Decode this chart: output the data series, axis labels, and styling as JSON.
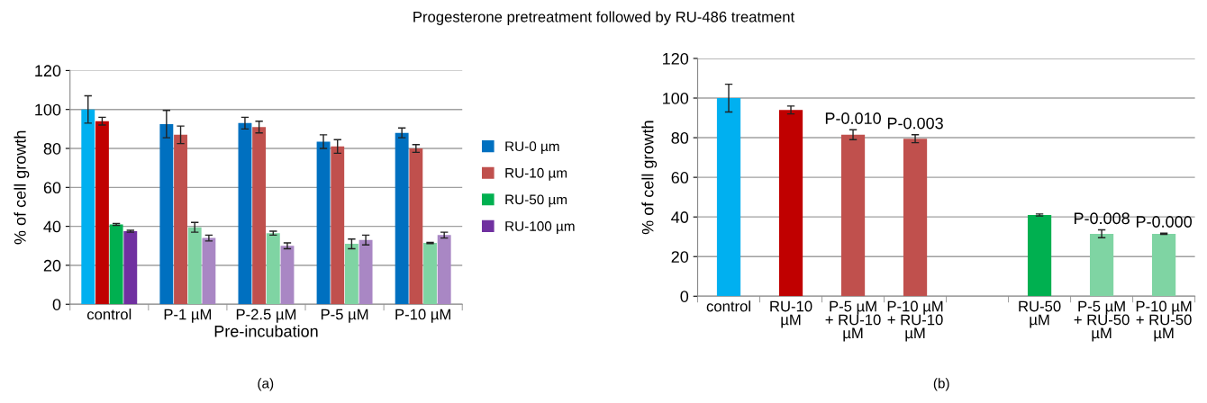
{
  "chart_data": [
    {
      "type": "bar",
      "title": "Progesterone pretreatment followed by RU-486 treatment",
      "xlabel": "Pre-incubation",
      "ylabel": "% of cell growth",
      "categories": [
        "control",
        "P-1 µM",
        "P-2.5 µM",
        "P-5 µM",
        "P-10 µM"
      ],
      "series": [
        {
          "name": "RU-0 µm",
          "color": "#0070c0",
          "colors": [
            "#00b0f0",
            "#0070c0",
            "#0070c0",
            "#0070c0",
            "#0070c0"
          ],
          "values": [
            100,
            92.5,
            93,
            83.5,
            88
          ],
          "errors": [
            7,
            7,
            3,
            3.5,
            2.5
          ]
        },
        {
          "name": "RU-10 µm",
          "color": "#c0504d",
          "colors": [
            "#c00000",
            "#c0504d",
            "#c0504d",
            "#c0504d",
            "#c0504d"
          ],
          "values": [
            94,
            87,
            91,
            81,
            80
          ],
          "errors": [
            2,
            4.5,
            3,
            3.5,
            2
          ]
        },
        {
          "name": "RU-50 µm",
          "color": "#00b050",
          "colors": [
            "#00b050",
            "#7fd4a3",
            "#7fd4a3",
            "#7fd4a3",
            "#7fd4a3"
          ],
          "values": [
            41,
            39.5,
            36.5,
            31,
            31.5
          ],
          "errors": [
            0.5,
            2.5,
            1,
            2.5,
            0.3
          ]
        },
        {
          "name": "RU-100 µm",
          "color": "#7030a0",
          "colors": [
            "#7030a0",
            "#a987c4",
            "#a987c4",
            "#a987c4",
            "#a987c4"
          ],
          "values": [
            37.5,
            34,
            30,
            33,
            35.5
          ],
          "errors": [
            0.5,
            1.5,
            1.5,
            2.5,
            1.5
          ]
        }
      ],
      "ylim": [
        0,
        120
      ],
      "yticks": [
        0,
        20,
        40,
        60,
        80,
        100,
        120
      ],
      "grid": "y",
      "legend": "right",
      "annotations": [
        "(a)"
      ]
    },
    {
      "type": "bar",
      "ylabel": "% of cell growth",
      "categories": [
        "control",
        "RU-10 µM",
        "P-5 µM + RU-10 µM",
        "P-10 µM + RU-10 µM",
        null,
        "RU-50 µM",
        "P-5 µM + RU-50 µM",
        "P-10 µM + RU-50 µM"
      ],
      "series": [
        {
          "colors": [
            "#00b0f0",
            "#c00000",
            "#c0504d",
            "#c0504d",
            "#c0504d",
            "#00b050",
            "#7fd4a3",
            "#7fd4a3"
          ],
          "values": [
            100,
            94,
            81.5,
            79.5,
            null,
            41,
            31.5,
            31.5
          ],
          "errors": [
            7,
            2,
            2.5,
            2,
            null,
            0.5,
            2,
            0.3
          ]
        }
      ],
      "ylim": [
        0,
        120
      ],
      "yticks": [
        0,
        20,
        40,
        60,
        80,
        100,
        120
      ],
      "grid": "y",
      "annotations": [
        {
          "text": "P-0.010",
          "x": "P-5 µM + RU-10 µM",
          "y": 84
        },
        {
          "text": "P-0.003",
          "x": "P-10 µM + RU-10 µM",
          "y": 81.5
        },
        {
          "text": "P-0.008",
          "x": "P-5 µM + RU-50 µM",
          "y": 33.5
        },
        {
          "text": "P-0.000",
          "x": "P-10 µM + RU-50 µM",
          "y": 31.8
        },
        "(b)"
      ]
    }
  ]
}
